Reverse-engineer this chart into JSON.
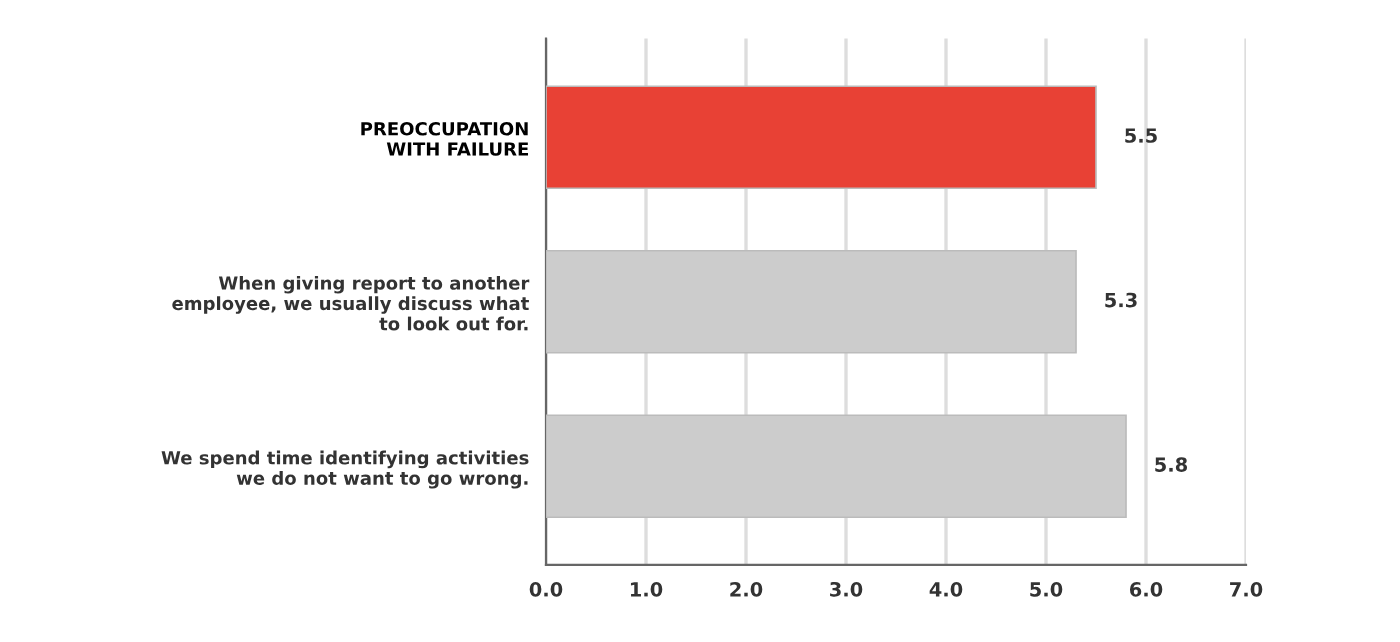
{
  "chart_data": {
    "type": "bar",
    "orientation": "horizontal",
    "categories": [
      "PREOCCUPATION\nWITH FAILURE",
      "When giving report to another\nemployee, we usually discuss what\nto look out for.",
      "We spend time identifying activities\nwe do not want to go wrong."
    ],
    "values": [
      5.5,
      5.3,
      5.8
    ],
    "colors": [
      "#e84135",
      "#cccccc",
      "#cccccc"
    ],
    "xlim": [
      0,
      7
    ],
    "xticks": [
      {
        "value": 0,
        "label": "0.0"
      },
      {
        "value": 1,
        "label": "1.0"
      },
      {
        "value": 2,
        "label": "2.0"
      },
      {
        "value": 3,
        "label": "3.0"
      },
      {
        "value": 4,
        "label": "4.0"
      },
      {
        "value": 5,
        "label": "5.0"
      },
      {
        "value": 6,
        "label": "6.0"
      },
      {
        "value": 7,
        "label": "7.0"
      }
    ],
    "grid": "x",
    "data_labels": true
  }
}
